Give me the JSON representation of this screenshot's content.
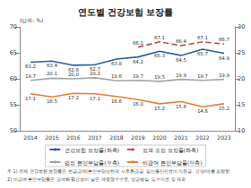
{
  "chart_data": {
    "type": "line",
    "title": "연도별 건강보험 보장률",
    "ylabel": "(단위: %)",
    "categories": [
      "2014",
      "2015",
      "2016",
      "2017",
      "2018",
      "2019",
      "2020",
      "2021",
      "2022",
      "2023"
    ],
    "series": [
      {
        "name": "건강보험 보장률(좌축)",
        "color": "#2f5c9e",
        "line_style": "solid",
        "marker": "none",
        "values": [
          63.2,
          63.4,
          62.6,
          62.7,
          63.8,
          64.2,
          65.3,
          64.5,
          65.7,
          64.9
        ]
      },
      {
        "name": "정책 조정 보장률(좌축)",
        "color": "#c0504d",
        "line_style": "dashed",
        "marker": "none",
        "values": [
          null,
          null,
          null,
          null,
          null,
          66.1,
          67.1,
          66.4,
          67.1,
          66.7
        ]
      },
      {
        "name": "법정 본인부담률(우축)",
        "color": "#a5a5a5",
        "line_style": "solid",
        "marker": "none",
        "axis": "y2",
        "values": [
          19.7,
          20.1,
          20.0,
          20.2,
          19.6,
          19.7,
          19.5,
          19.9,
          19.7,
          19.9
        ],
        "value_labels": [
          "19.7",
          "20.1",
          "20.0",
          "20.2",
          "19.6",
          "19.7",
          "19.5",
          "19.9",
          "19.7",
          "19.9"
        ]
      },
      {
        "name": "비급여 본인부담률(우축)",
        "color": "#ed7d31",
        "line_style": "solid",
        "marker": "none",
        "axis": "y2",
        "values": [
          17.1,
          16.5,
          17.2,
          17.1,
          16.6,
          16.0,
          15.2,
          15.6,
          14.6,
          15.2
        ],
        "value_labels": [
          "17.1",
          "16.5",
          "17.2",
          "17.1",
          "16.6",
          "16.0",
          "15.2",
          "15.6",
          "14.6",
          "15.2"
        ]
      }
    ],
    "ylim": [
      50,
      70
    ],
    "yticks": [
      50,
      55,
      60,
      65,
      70
    ],
    "y2lim": [
      10,
      30
    ],
    "y2ticks": [
      10,
      15,
      20,
      25,
      30
    ],
    "data_labels": true,
    "grid": false,
    "legend": "bottom",
    "notes": [
      "주 1) 전체 건강보험 보장률은 현금급여(본인부담상한제 사후환급금, 임신출산진료비 지원금, 요양비)를 포함함",
      "2) 비급여 본인부담률은 급여화 필요성이 낮은 제증명수수료, 상급병실, 도수치료 등 제외"
    ]
  }
}
